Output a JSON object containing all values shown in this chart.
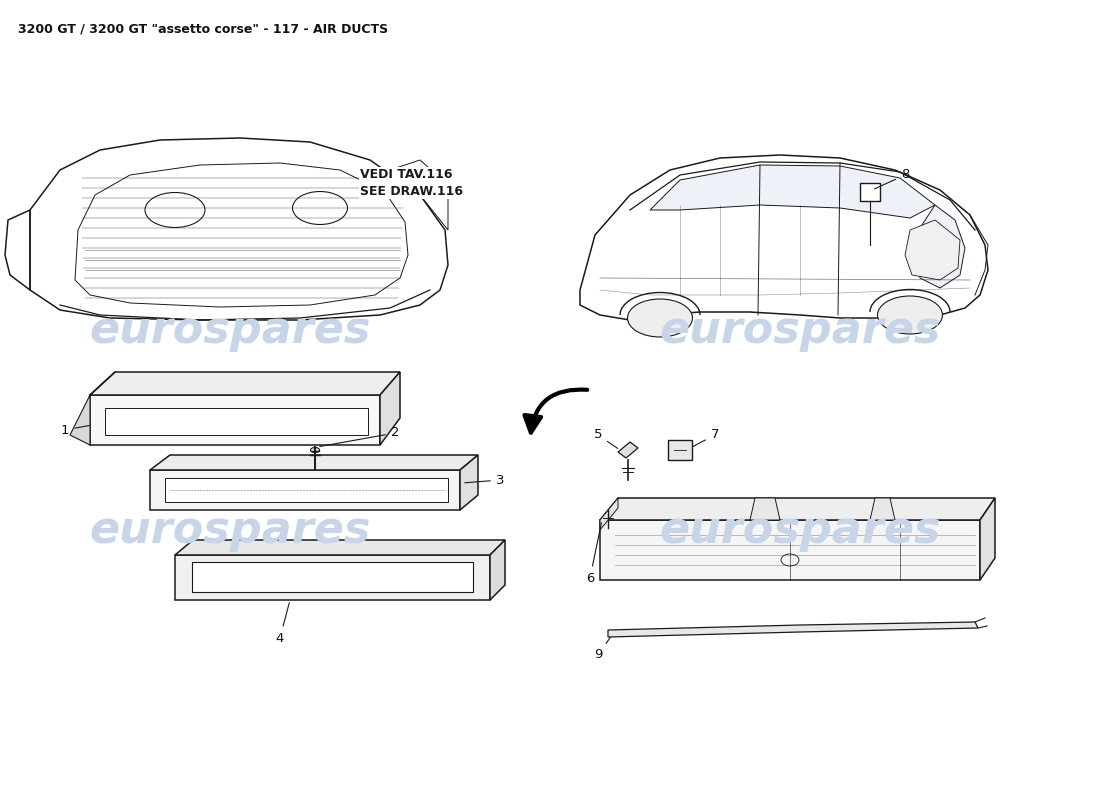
{
  "title": "3200 GT / 3200 GT \"assetto corse\" - 117 - AIR DUCTS",
  "title_fontsize": 9,
  "background_color": "#ffffff",
  "watermark_text": "eurospares",
  "watermark_color": "#c8d4e8",
  "watermark_fontsize": 32,
  "vedi_line1": "VEDI TAV.116",
  "vedi_line2": "SEE DRAW.116",
  "line_color": "#1a1a1a"
}
